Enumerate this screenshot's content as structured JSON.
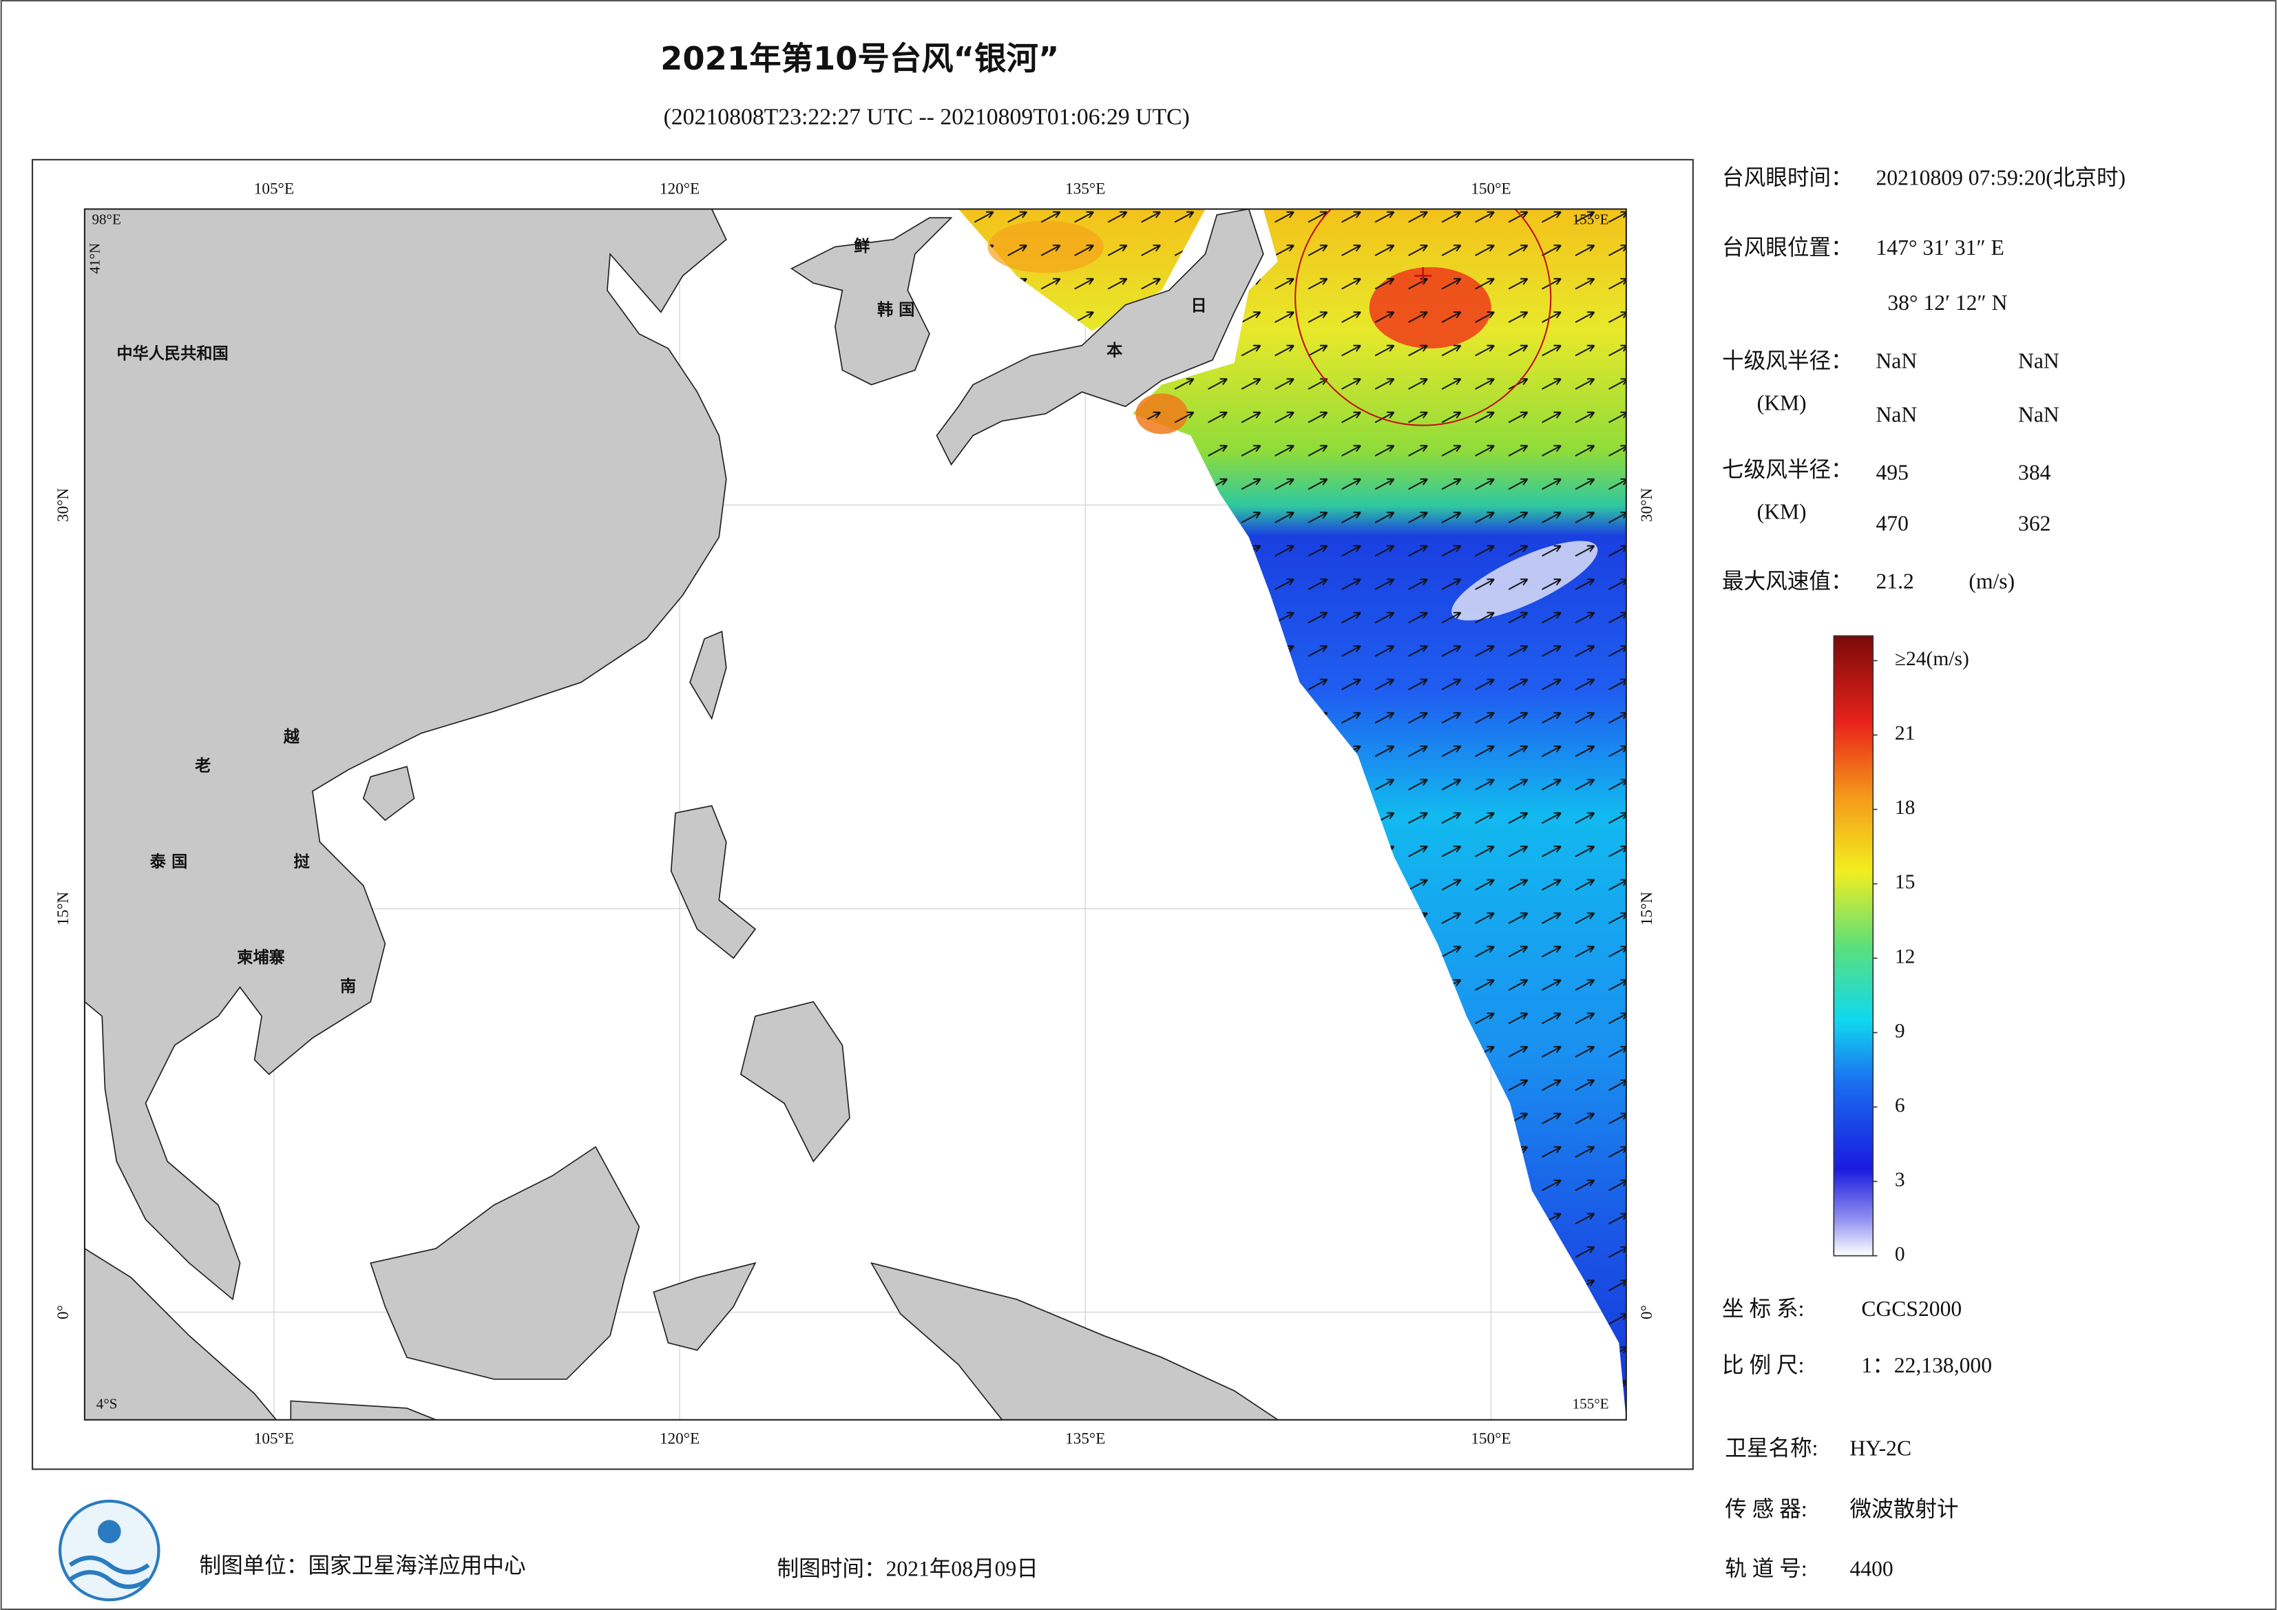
{
  "title": "2021年第10号台风“银河”",
  "subtitle": "(20210808T23:22:27 UTC -- 20210809T01:06:29 UTC)",
  "map": {
    "lon_range": [
      98,
      155
    ],
    "lat_range": [
      -4,
      41
    ],
    "lon_ticks": [
      {
        "value": 105,
        "label": "105°E"
      },
      {
        "value": 120,
        "label": "120°E"
      },
      {
        "value": 135,
        "label": "135°E"
      },
      {
        "value": 150,
        "label": "150°E"
      }
    ],
    "lat_ticks": [
      {
        "value": 30,
        "label": "30°N"
      },
      {
        "value": 15,
        "label": "15°N"
      },
      {
        "value": 0,
        "label": "0°"
      }
    ],
    "corner_labels": {
      "top_left_lon": "98°E",
      "top_left_lat": "41°N",
      "top_right_lon": "155°E",
      "bottom_left_lat": "4°S",
      "bottom_right_lon": "155°E"
    },
    "place_labels": [
      "中华人民共和国",
      "鲜",
      "韩 国",
      "日",
      "本",
      "老",
      "越",
      "挝",
      "泰 国",
      "柬埔寨",
      "南"
    ]
  },
  "info": {
    "eye_time_label": "台风眼时间：",
    "eye_time": "20210809 07:59:20(北京时)",
    "eye_pos_label": "台风眼位置：",
    "eye_lon": "147° 31′ 31″ E",
    "eye_lat": "38° 12′ 12″ N",
    "r10_label": "十级风半径：",
    "km": "(KM)",
    "r10": [
      [
        "NaN",
        "NaN"
      ],
      [
        "NaN",
        "NaN"
      ]
    ],
    "r7_label": "七级风半径：",
    "r7": [
      [
        495,
        384
      ],
      [
        470,
        362
      ]
    ],
    "max_wind_label": "最大风速值：",
    "max_wind": 21.2,
    "max_wind_unit": "(m/s)",
    "crs_label": "坐 标 系:",
    "crs": "CGCS2000",
    "scale_label": "比 例 尺:",
    "scale": "1：22,138,000",
    "sat_label": "卫星名称:",
    "sat": "HY-2C",
    "sensor_label": "传 感 器:",
    "sensor": "微波散射计",
    "orbit_label": "轨 道 号:",
    "orbit": 4400
  },
  "colorbar": {
    "lim": [
      0,
      25
    ],
    "ticks": [
      0,
      3,
      6,
      9,
      12,
      15,
      18,
      21,
      {
        "value": 24,
        "label": "≥24(m/s)"
      }
    ]
  },
  "footer": {
    "unit": "制图单位：国家卫星海洋应用中心",
    "time": "制图时间：2021年08月09日"
  }
}
